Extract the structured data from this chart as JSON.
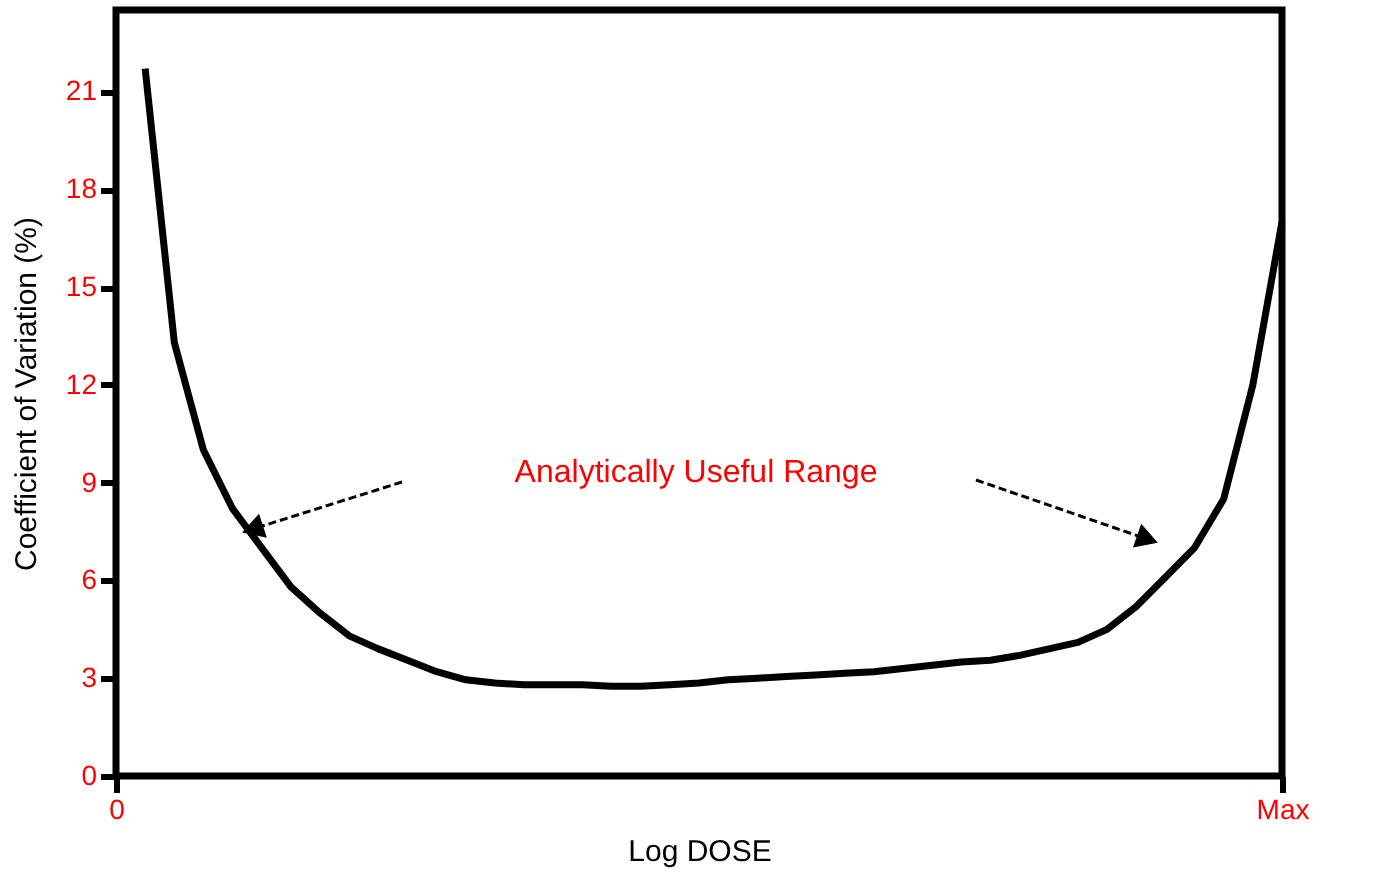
{
  "chart_data": {
    "type": "line",
    "xlabel": "Log DOSE",
    "ylabel": "Coefficient of Variation (%)",
    "categories": [
      "0",
      null,
      null,
      null,
      null,
      null,
      null,
      null,
      null,
      null,
      null,
      null,
      null,
      null,
      null,
      null,
      null,
      null,
      null,
      null,
      null,
      null,
      null,
      null,
      null,
      null,
      null,
      null,
      null,
      null,
      null,
      null,
      null,
      null,
      null,
      null,
      null,
      null,
      null,
      null,
      "Max"
    ],
    "series": [
      {
        "color": "#000000",
        "values": [
          null,
          21.7,
          13.3,
          10.0,
          8.2,
          7.0,
          5.8,
          5.0,
          4.3,
          3.9,
          3.55,
          3.2,
          2.95,
          2.85,
          2.8,
          2.8,
          2.8,
          2.75,
          2.75,
          2.8,
          2.85,
          2.95,
          3.0,
          3.05,
          3.1,
          3.15,
          3.2,
          3.3,
          3.4,
          3.5,
          3.55,
          3.7,
          3.9,
          4.1,
          4.5,
          5.2,
          6.1,
          7.0,
          8.5,
          12.0,
          17.0
        ]
      }
    ],
    "ylim": [
      0,
      23.5
    ],
    "yticks": [
      0,
      3,
      6,
      9,
      12,
      15,
      18,
      21
    ],
    "annotations": [
      "Analytically Useful Range"
    ],
    "grid": false,
    "marker": "none",
    "line_style": "solid"
  }
}
